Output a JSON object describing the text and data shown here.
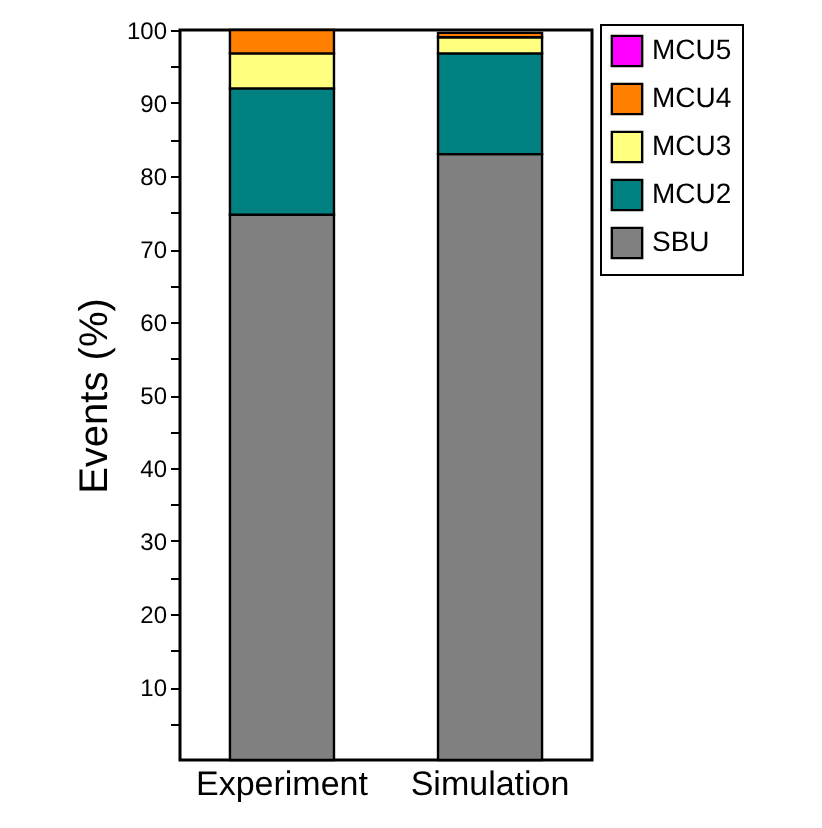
{
  "chart_data": {
    "type": "bar",
    "stacked": true,
    "ylabel": "Events (%)",
    "categories": [
      "Experiment",
      "Simulation"
    ],
    "series": [
      {
        "name": "SBU",
        "color": "#808080",
        "values": [
          74.7,
          83.0
        ]
      },
      {
        "name": "MCU2",
        "color": "#008080",
        "values": [
          17.3,
          13.8
        ]
      },
      {
        "name": "MCU3",
        "color": "#ffff80",
        "values": [
          4.8,
          2.2
        ]
      },
      {
        "name": "MCU4",
        "color": "#ff8000",
        "values": [
          3.2,
          0.6
        ]
      },
      {
        "name": "MCU5",
        "color": "#ff00ff",
        "values": [
          null,
          null
        ]
      }
    ],
    "ylim": [
      0,
      100
    ],
    "yticks": [
      {
        "value": 5,
        "label": null
      },
      10,
      {
        "value": 15,
        "label": null
      },
      20,
      {
        "value": 25,
        "label": null
      },
      30,
      {
        "value": 35,
        "label": null
      },
      40,
      {
        "value": 45,
        "label": null
      },
      50,
      {
        "value": 55,
        "label": null
      },
      60,
      {
        "value": 65,
        "label": null
      },
      70,
      {
        "value": 75,
        "label": null
      },
      80,
      {
        "value": 85,
        "label": null
      },
      90,
      {
        "value": 95,
        "label": null
      },
      100
    ],
    "grid": false,
    "legend": "top right"
  }
}
